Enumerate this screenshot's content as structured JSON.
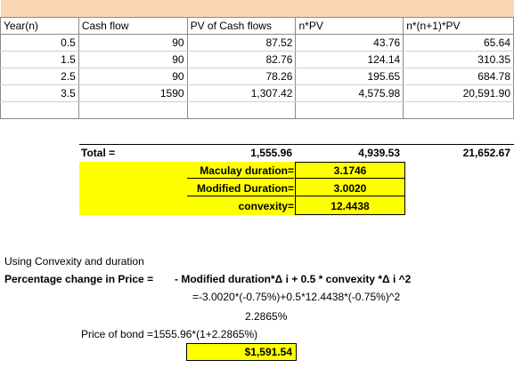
{
  "table": {
    "headers": [
      "Year(n)",
      "Cash flow",
      "PV of Cash flows",
      "n*PV",
      "n*(n+1)*PV"
    ],
    "rows": [
      [
        "0.5",
        "90",
        "87.52",
        "43.76",
        "65.64"
      ],
      [
        "1.5",
        "90",
        "82.76",
        "124.14",
        "310.35"
      ],
      [
        "2.5",
        "90",
        "78.26",
        "195.65",
        "684.78"
      ],
      [
        "3.5",
        "1590",
        "1,307.42",
        "4,575.98",
        "20,591.90"
      ]
    ]
  },
  "totals": {
    "label": "Total =",
    "pv": "1,555.96",
    "npv": "4,939.53",
    "nn1pv": "21,652.67"
  },
  "metrics": [
    {
      "label": "Maculay duration=",
      "value": "3.1746"
    },
    {
      "label": "Modified Duration=",
      "value": "3.0020"
    },
    {
      "label": "convexity=",
      "value": "12.4438"
    }
  ],
  "notes": {
    "heading": "Using Convexity and duration",
    "formula_label": "Percentage change in Price  =",
    "formula": "- Modified duration*Δ i  +  0.5 * convexity *Δ i ^2",
    "substitution": "=-3.0020*(-0.75%)+0.5*12.4438*(-0.75%)^2",
    "result": "2.2865%",
    "price_label": "Price of bond =1555.96*(1+2.2865%)",
    "price_value": "$1,591.54"
  }
}
